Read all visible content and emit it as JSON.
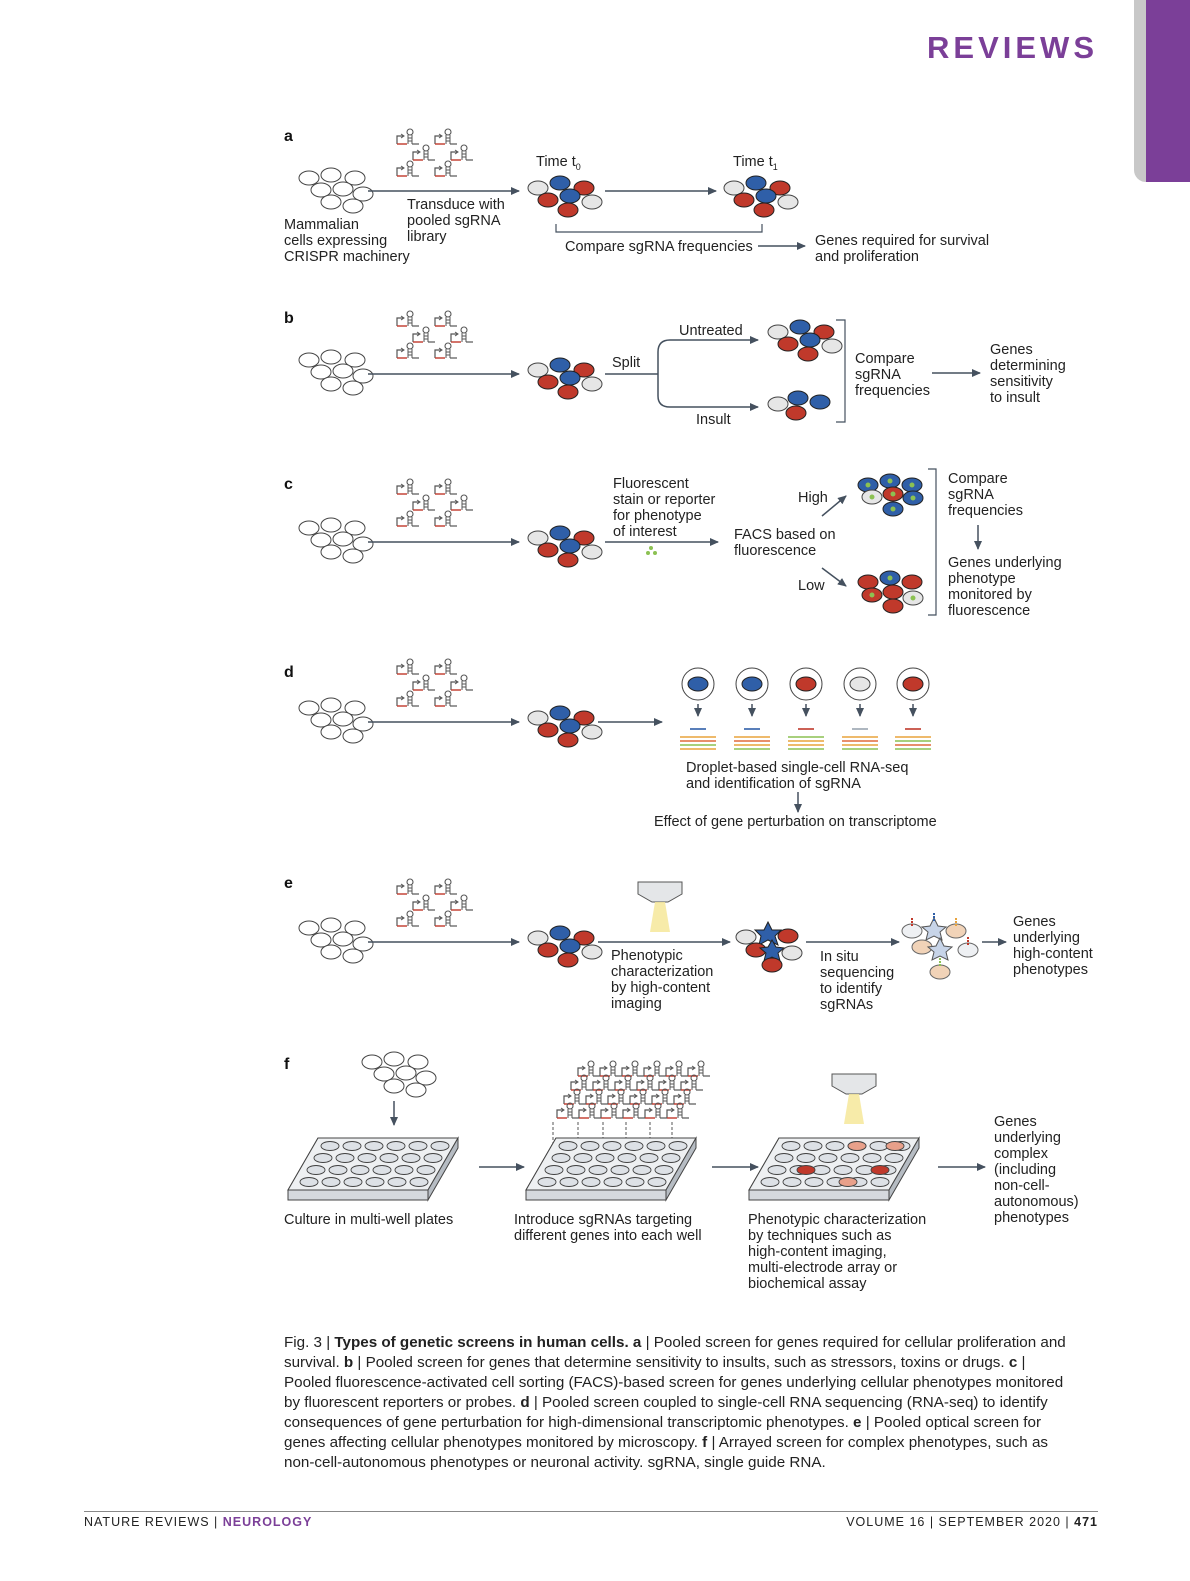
{
  "header": {
    "title": "REVIEWS"
  },
  "panels": {
    "a": {
      "letter": "a",
      "cells_label": [
        "Mammalian",
        "cells expressing",
        "CRISPR machinery"
      ],
      "transduce_label": [
        "Transduce with",
        "pooled sgRNA",
        "library"
      ],
      "time0_label": "Time t",
      "time0_sub": "0",
      "time1_label": "Time t",
      "time1_sub": "1",
      "compare_label": "Compare sgRNA frequencies",
      "result_label": [
        "Genes required for survival",
        "and proliferation"
      ]
    },
    "b": {
      "letter": "b",
      "split_label": "Split",
      "untreated_label": "Untreated",
      "insult_label": "Insult",
      "compare_label": [
        "Compare",
        "sgRNA",
        "frequencies"
      ],
      "result_label": [
        "Genes",
        "determining",
        "sensitivity",
        "to insult"
      ]
    },
    "c": {
      "letter": "c",
      "stain_label": [
        "Fluorescent",
        "stain or reporter",
        "for phenotype",
        "of interest"
      ],
      "facs_label": [
        "FACS based on",
        "fluorescence"
      ],
      "high_label": "High",
      "low_label": "Low",
      "compare_label": [
        "Compare",
        "sgRNA",
        "frequencies"
      ],
      "result_label": [
        "Genes underlying",
        "phenotype",
        "monitored by",
        "fluorescence"
      ]
    },
    "d": {
      "letter": "d",
      "droplet_label": [
        "Droplet-based single-cell RNA-seq",
        "and identification of sgRNA"
      ],
      "result_label": "Effect of gene perturbation on transcriptome"
    },
    "e": {
      "letter": "e",
      "phenotypic_label": [
        "Phenotypic",
        "characterization",
        "by high-content",
        "imaging"
      ],
      "insitu_label": [
        "In situ",
        "sequencing",
        "to identify",
        "sgRNAs"
      ],
      "result_label": [
        "Genes",
        "underlying",
        "high-content",
        "phenotypes"
      ]
    },
    "f": {
      "letter": "f",
      "culture_label": "Culture in multi-well plates",
      "introduce_label": [
        "Introduce sgRNAs targeting",
        "different genes into each well"
      ],
      "phenotypic_label": [
        "Phenotypic characterization",
        "by techniques such as",
        "high-content imaging,",
        "multi-electrode array or",
        "biochemical assay"
      ],
      "result_label": [
        "Genes",
        "underlying",
        "complex",
        "(including",
        "non-cell-",
        "autonomous)",
        "phenotypes"
      ]
    }
  },
  "caption": {
    "fig": "Fig. 3 | ",
    "title": "Types of genetic screens in human cells.",
    "a_letter": "a",
    "a_text": " | Pooled screen for genes required for cellular proliferation and survival. ",
    "b_letter": "b",
    "b_text": " | Pooled screen for genes that determine sensitivity to insults, such as stressors, toxins or drugs. ",
    "c_letter": "c",
    "c_text": " | Pooled fluorescence-activated cell sorting (FACS)-based screen for genes underlying cellular phenotypes monitored by fluorescent reporters or probes. ",
    "d_letter": "d",
    "d_text": " | Pooled screen coupled to single-cell RNA sequencing (RNA-seq) to identify consequences of gene perturbation for high-dimensional transcriptomic phenotypes. ",
    "e_letter": "e",
    "e_text": " | Pooled optical screen for genes affecting cellular phenotypes monitored by microscopy. ",
    "f_letter": "f",
    "f_text": " | Arrayed screen for complex phenotypes, such as non-cell-autonomous phenotypes or neuronal activity. sgRNA, single guide RNA."
  },
  "footer": {
    "journal": "NATURE REVIEWS | ",
    "section": "NEUROLOGY",
    "issue": "VOLUME 16 | SEPTEMBER 2020 | ",
    "page": "471"
  },
  "colors": {
    "accent": "#7b3f98",
    "cell_red": "#c0392b",
    "cell_blue": "#2f5fa8",
    "cell_grey": "#e6e6e6",
    "arrow": "#45515f"
  }
}
